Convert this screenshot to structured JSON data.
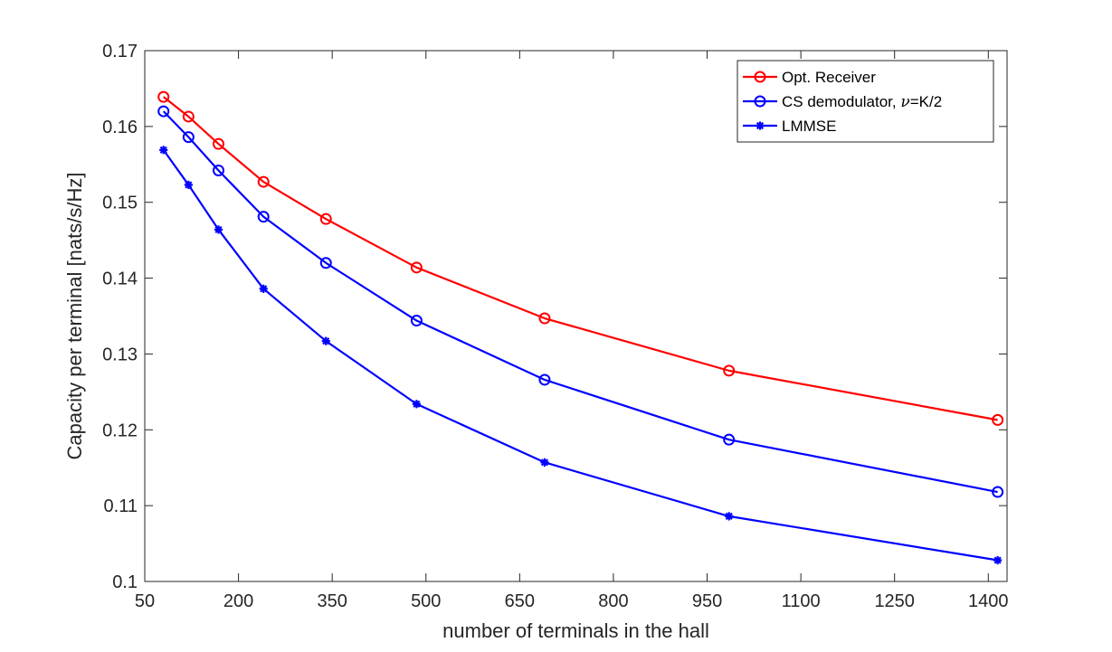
{
  "chart_data": {
    "type": "line",
    "title": "",
    "xlabel": "number of terminals in the hall",
    "ylabel": "Capacity per terminal [nats/s/Hz]",
    "xlim": [
      50,
      1430
    ],
    "ylim": [
      0.1,
      0.17
    ],
    "xticks": [
      50,
      200,
      350,
      500,
      650,
      800,
      950,
      1100,
      1250,
      1400
    ],
    "xtick_labels": [
      "50",
      "200",
      "350",
      "500",
      "650",
      "800",
      "950",
      "1100",
      "1250",
      "1400"
    ],
    "yticks": [
      0.1,
      0.11,
      0.12,
      0.13,
      0.14,
      0.15,
      0.16,
      0.17
    ],
    "ytick_labels": [
      "0.1",
      "0.11",
      "0.12",
      "0.13",
      "0.14",
      "0.15",
      "0.16",
      "0.17"
    ],
    "grid": false,
    "legend_position": "top-right",
    "x": [
      80,
      120,
      168,
      240,
      340,
      485,
      690,
      985,
      1415
    ],
    "series": [
      {
        "name": "Opt. Receiver",
        "legend_prefix": "Opt. Receiver",
        "legend_suffix": "",
        "color": "#ff0000",
        "marker": "circle",
        "values": [
          0.1639,
          0.1613,
          0.1577,
          0.1527,
          0.1478,
          0.1414,
          0.1347,
          0.1278,
          0.1213
        ]
      },
      {
        "name": "CS demodulator, ν=K/2",
        "legend_prefix": "CS demodulator, ",
        "legend_nu": "ν",
        "legend_suffix": "=K/2",
        "color": "#0000ff",
        "marker": "circle",
        "values": [
          0.162,
          0.1586,
          0.1542,
          0.1481,
          0.142,
          0.1344,
          0.1266,
          0.1187,
          0.1118
        ]
      },
      {
        "name": "LMMSE",
        "legend_prefix": "LMMSE",
        "legend_suffix": "",
        "color": "#0000ff",
        "marker": "asterisk",
        "values": [
          0.1569,
          0.1523,
          0.1464,
          0.1386,
          0.1317,
          0.1234,
          0.1157,
          0.1086,
          0.1028
        ]
      }
    ]
  }
}
